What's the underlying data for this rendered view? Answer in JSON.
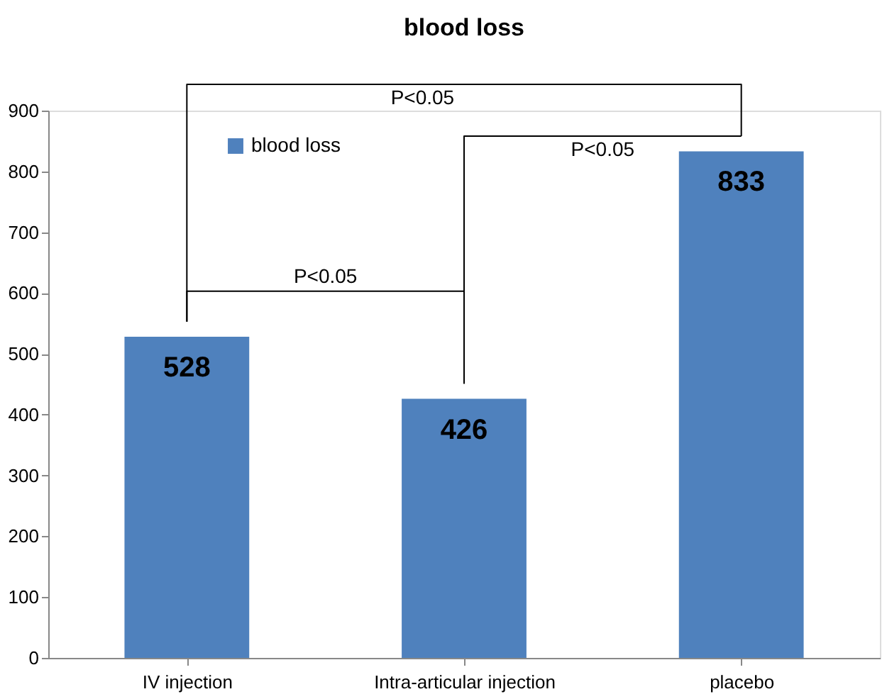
{
  "chart_data": {
    "type": "bar",
    "title": "blood loss",
    "categories": [
      "IV injection",
      "Intra-articular injection",
      "placebo"
    ],
    "series": [
      {
        "name": "blood loss",
        "color": "#4f81bd",
        "values": [
          528,
          426,
          833
        ]
      }
    ],
    "ylim": [
      0,
      900
    ],
    "yticks": [
      0,
      100,
      200,
      300,
      400,
      500,
      600,
      700,
      800,
      900
    ],
    "grid": false,
    "legend": "top left",
    "data_labels": true,
    "annotations": [
      "P<0.05",
      "P<0.05",
      "P<0.05"
    ]
  }
}
